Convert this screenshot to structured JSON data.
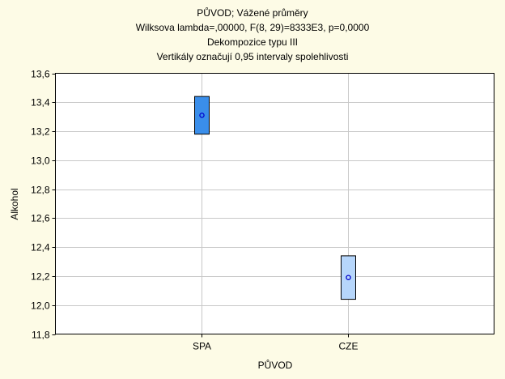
{
  "chart_data": {
    "type": "error-bar",
    "title_lines": [
      "PŮVOD; Vážené průměry",
      "Wilksova lambda=,00000, F(8, 29)=8333E3, p=0,0000",
      "Dekompozice typu III",
      "Vertikály označují 0,95 intervaly spolehlivosti"
    ],
    "xlabel": "PŮVOD",
    "ylabel": "Alkohol",
    "ylim": [
      11.8,
      13.6
    ],
    "yticks": [
      11.8,
      12.0,
      12.2,
      12.4,
      12.6,
      12.8,
      13.0,
      13.2,
      13.4,
      13.6
    ],
    "ytick_labels": [
      "11,8",
      "12,0",
      "12,2",
      "12,4",
      "12,6",
      "12,8",
      "13,0",
      "13,2",
      "13,4",
      "13,6"
    ],
    "categories": [
      "SPA",
      "CZE"
    ],
    "points": [
      {
        "category": "SPA",
        "mean": 13.31,
        "ci_low": 13.18,
        "ci_high": 13.44,
        "color": "#3a8eea"
      },
      {
        "category": "CZE",
        "mean": 12.19,
        "ci_low": 12.04,
        "ci_high": 12.34,
        "color": "#b6d6fb"
      }
    ],
    "marker_color": "#0000cc",
    "grid": true
  }
}
